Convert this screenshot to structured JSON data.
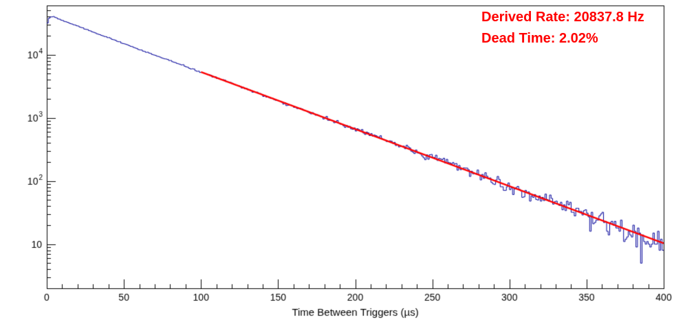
{
  "annotations": {
    "derived_rate": "Derived Rate: 20837.8 Hz",
    "dead_time": "Dead Time: 2.02%"
  },
  "chart_data": {
    "type": "histogram",
    "title": "",
    "xlabel": "Time Between Triggers (µs)",
    "ylabel": "",
    "y_scale": "log",
    "grid": false,
    "legend": "none",
    "xlim": [
      0,
      400
    ],
    "ylim": [
      2,
      60000
    ],
    "x_ticks": [
      0,
      50,
      100,
      150,
      200,
      250,
      300,
      350,
      400
    ],
    "x_minor_step": 10,
    "y_ticks": [
      10,
      100,
      1000,
      10000
    ],
    "y_tick_labels": [
      "10",
      "10^2",
      "10^3",
      "10^4"
    ],
    "bin_width_us": 1,
    "noise_seed": 123456789,
    "colors": {
      "histogram": "#000099",
      "fit": "#ff0000",
      "annotation": "#ff0000",
      "axis": "#000000"
    },
    "series": [
      {
        "name": "time-between-triggers-histogram",
        "type": "step",
        "color": "#000099",
        "anchors_x": [
          0,
          1,
          2,
          4,
          6,
          10,
          20,
          30,
          50,
          75,
          100,
          150,
          200,
          250,
          300,
          350,
          400
        ],
        "anchors_y": [
          28000,
          36000,
          39500,
          40000,
          38500,
          34800,
          28500,
          22800,
          15000,
          8900,
          5300,
          1870,
          660,
          233,
          82,
          29,
          10.3
        ]
      },
      {
        "name": "exponential-fit",
        "type": "line",
        "color": "#ff0000",
        "x_start": 100,
        "y_start": 5300,
        "x_end": 400,
        "y_end": 10.3
      }
    ],
    "model": {
      "shape": "exponential-decay",
      "peak_x_us": 3,
      "peak_counts": 40000,
      "tau_us": 48.0
    },
    "derived_rate_hz": 20837.8,
    "dead_time_pct": 2.02
  }
}
